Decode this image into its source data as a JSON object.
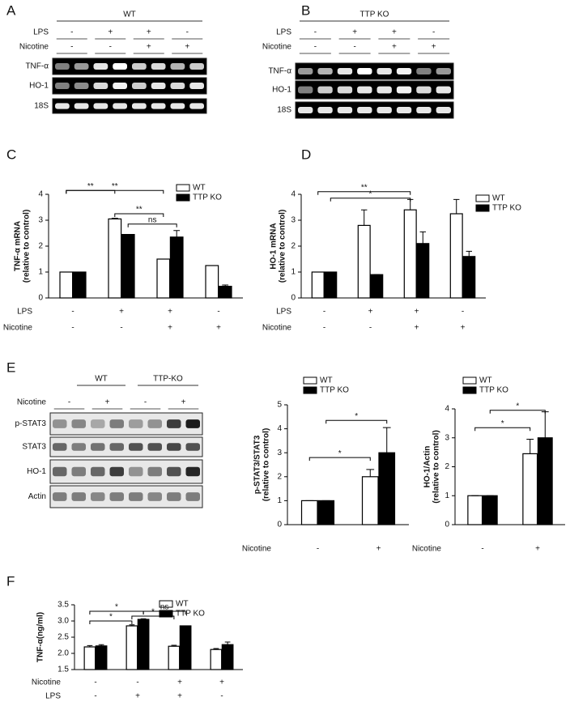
{
  "blots": [
    {
      "panel": "A",
      "header": [
        "WT"
      ],
      "conditions": [
        {
          "name": "LPS",
          "values": [
            "-",
            "+",
            "+",
            "-"
          ]
        },
        {
          "name": "Nicotine",
          "values": [
            "-",
            "-",
            "+",
            "+"
          ]
        }
      ],
      "bands": [
        "TNF-α",
        "HO-1",
        "18S"
      ],
      "background": "#000000"
    },
    {
      "panel": "B",
      "header": [
        "TTP KO"
      ],
      "conditions": [
        {
          "name": "LPS",
          "values": [
            "-",
            "+",
            "+",
            "-"
          ]
        },
        {
          "name": "Nicotine",
          "values": [
            "-",
            "-",
            "+",
            "+"
          ]
        }
      ],
      "bands": [
        "TNF-α",
        "HO-1",
        "18S"
      ],
      "background": "#000000"
    },
    {
      "panel": "E",
      "header": [
        "WT",
        "TTP-KO"
      ],
      "conditions": [
        {
          "name": "Nicotine",
          "values": [
            "-",
            "+",
            "-",
            "+"
          ]
        }
      ],
      "bands": [
        "p-STAT3",
        "STAT3",
        "HO-1",
        "Actin"
      ],
      "background": "#e8e8e8"
    }
  ],
  "chart_data": [
    {
      "type": "bar",
      "panel": "C",
      "ylabel": [
        "TNF-α mRNA",
        "(relative to control)"
      ],
      "ylim": [
        0,
        4
      ],
      "yticks": [
        0,
        1,
        2,
        3,
        4
      ],
      "conditions": [
        {
          "name": "LPS",
          "values": [
            "-",
            "+",
            "+",
            "-"
          ]
        },
        {
          "name": "Nicotine",
          "values": [
            "-",
            "-",
            "+",
            "+"
          ]
        }
      ],
      "series": [
        {
          "name": "WT",
          "color": "#ffffff",
          "values": [
            1,
            3.05,
            1.5,
            1.25
          ],
          "errors": [
            0,
            0.03,
            0,
            0
          ]
        },
        {
          "name": "TTP KO",
          "color": "#000000",
          "values": [
            1,
            2.45,
            2.35,
            0.45
          ],
          "errors": [
            0,
            0,
            0.25,
            0.05
          ]
        }
      ],
      "annotations": [
        "**",
        "**",
        "**",
        "ns"
      ]
    },
    {
      "type": "bar",
      "panel": "D",
      "ylabel": [
        "HO-1 mRNA",
        "(relative to control)"
      ],
      "ylim": [
        0,
        4
      ],
      "yticks": [
        0,
        1,
        2,
        3,
        4
      ],
      "conditions": [
        {
          "name": "LPS",
          "values": [
            "-",
            "+",
            "+",
            "-"
          ]
        },
        {
          "name": "Nicotine",
          "values": [
            "-",
            "-",
            "+",
            "+"
          ]
        }
      ],
      "series": [
        {
          "name": "WT",
          "color": "#ffffff",
          "values": [
            1,
            2.8,
            3.4,
            3.25
          ],
          "errors": [
            0,
            0.6,
            0.4,
            0.55
          ]
        },
        {
          "name": "TTP KO",
          "color": "#000000",
          "values": [
            1,
            0.9,
            2.1,
            1.6
          ],
          "errors": [
            0,
            0,
            0.45,
            0.2
          ]
        }
      ],
      "annotations": [
        "**",
        "*"
      ]
    },
    {
      "type": "bar",
      "panel": "",
      "ylabel": [
        "p-STAT3/STAT3",
        "(relative to control)"
      ],
      "ylim": [
        0,
        5
      ],
      "yticks": [
        0,
        1,
        2,
        3,
        4,
        5
      ],
      "conditions": [
        {
          "name": "Nicotine",
          "values": [
            "-",
            "+"
          ]
        }
      ],
      "series": [
        {
          "name": "WT",
          "color": "#ffffff",
          "values": [
            1,
            2.0
          ],
          "errors": [
            0,
            0.3
          ]
        },
        {
          "name": "TTP KO",
          "color": "#000000",
          "values": [
            1,
            3.0
          ],
          "errors": [
            0,
            1.05
          ]
        }
      ],
      "annotations": [
        "*",
        "*"
      ]
    },
    {
      "type": "bar",
      "panel": "",
      "ylabel": [
        "HO-1/Actin",
        "(relative to control)"
      ],
      "ylim": [
        0,
        4
      ],
      "yticks": [
        0,
        1,
        2,
        3,
        4
      ],
      "conditions": [
        {
          "name": "Nicotine",
          "values": [
            "-",
            "+"
          ]
        }
      ],
      "series": [
        {
          "name": "WT",
          "color": "#ffffff",
          "values": [
            1,
            2.45
          ],
          "errors": [
            0,
            0.5
          ]
        },
        {
          "name": "TTP KO",
          "color": "#000000",
          "values": [
            1,
            3.0
          ],
          "errors": [
            0,
            0.9
          ]
        }
      ],
      "annotations": [
        "*",
        "*"
      ]
    },
    {
      "type": "bar",
      "panel": "F",
      "ylabel": [
        "TNF-α(ng/ml)"
      ],
      "ylim": [
        1.5,
        3.5
      ],
      "yticks": [
        {
          "value": 1.5,
          "label": "1.5"
        },
        {
          "value": 2,
          "label": "2.0"
        },
        {
          "value": 2.5,
          "label": "2.5"
        },
        {
          "value": 3,
          "label": "3.0"
        },
        {
          "value": 3.5,
          "label": "3.5"
        }
      ],
      "conditions": [
        {
          "name": "Nicotine",
          "values": [
            "-",
            "-",
            "+",
            "+"
          ]
        },
        {
          "name": "LPS",
          "values": [
            "-",
            "+",
            "+",
            "-"
          ]
        }
      ],
      "series": [
        {
          "name": "WT",
          "color": "#ffffff",
          "values": [
            2.2,
            2.85,
            2.22,
            2.12
          ],
          "errors": [
            0.04,
            0.03,
            0.03,
            0.03
          ]
        },
        {
          "name": "TTP KO",
          "color": "#000000",
          "values": [
            2.23,
            3.05,
            2.85,
            2.27
          ],
          "errors": [
            0.04,
            0.02,
            0,
            0.08
          ]
        }
      ],
      "annotations": [
        "*",
        "*",
        "*",
        "ns"
      ]
    }
  ]
}
